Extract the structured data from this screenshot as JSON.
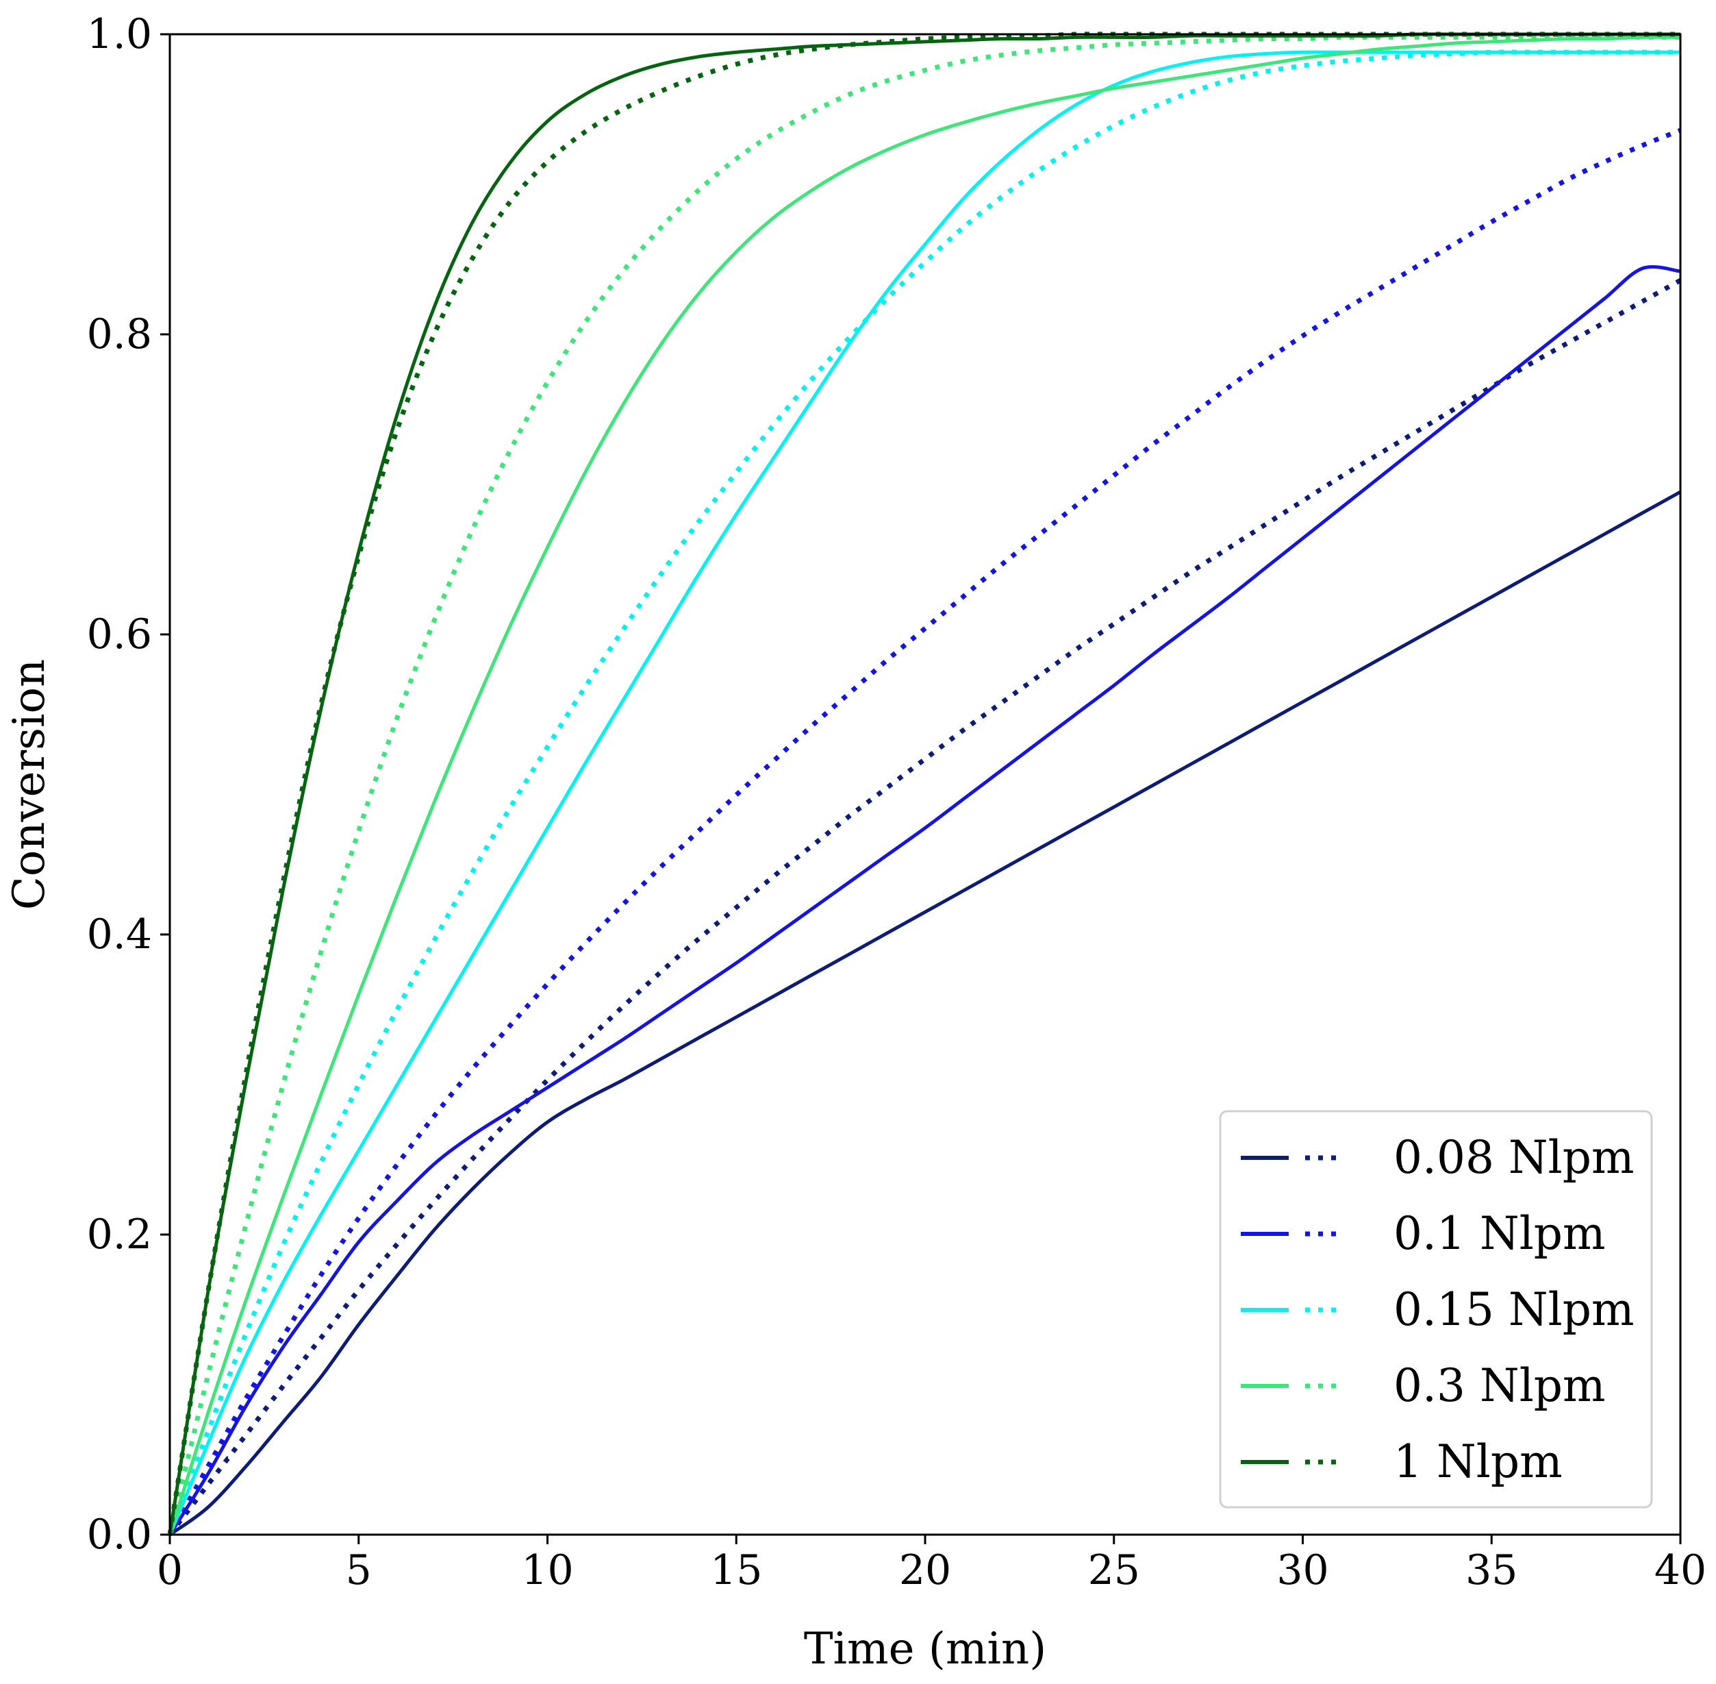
{
  "chart_data": {
    "type": "line",
    "title": "",
    "xlabel": "Time (min)",
    "ylabel": "Conversion",
    "xlim": [
      0,
      40
    ],
    "ylim": [
      0.0,
      1.0
    ],
    "xticks": [
      0,
      5,
      10,
      15,
      20,
      25,
      30,
      35,
      40
    ],
    "xtick_labels": [
      "0",
      "5",
      "10",
      "15",
      "20",
      "25",
      "30",
      "35",
      "40"
    ],
    "yticks": [
      0.0,
      0.2,
      0.4,
      0.6,
      0.8,
      1.0
    ],
    "ytick_labels": [
      "0.0",
      "0.2",
      "0.4",
      "0.6",
      "0.8",
      "1.0"
    ],
    "grid": false,
    "legend_position": "bottom-right",
    "x": [
      0,
      1,
      2,
      3,
      4,
      5,
      6,
      7,
      8,
      9,
      10,
      11,
      12,
      13,
      14,
      15,
      16,
      17,
      18,
      19,
      20,
      21,
      22,
      23,
      24,
      25,
      26,
      27,
      28,
      29,
      30,
      31,
      32,
      33,
      34,
      35,
      36,
      37,
      38,
      39,
      40
    ],
    "series": [
      {
        "name": "0.08 Nlpm",
        "label": "0.08 Nlpm",
        "color": "#0d1b7a",
        "solid": [
          0.0,
          0.018,
          0.045,
          0.075,
          0.105,
          0.14,
          0.172,
          0.203,
          0.23,
          0.254,
          0.275,
          0.29,
          0.303,
          0.317,
          0.331,
          0.345,
          0.359,
          0.373,
          0.387,
          0.401,
          0.415,
          0.429,
          0.443,
          0.457,
          0.471,
          0.485,
          0.499,
          0.513,
          0.527,
          0.541,
          0.555,
          0.569,
          0.583,
          0.597,
          0.611,
          0.625,
          0.639,
          0.653,
          0.667,
          0.681,
          0.695
        ],
        "dotted": [
          0.0,
          0.033,
          0.066,
          0.099,
          0.131,
          0.163,
          0.193,
          0.222,
          0.25,
          0.277,
          0.303,
          0.328,
          0.352,
          0.375,
          0.397,
          0.418,
          0.439,
          0.459,
          0.479,
          0.498,
          0.517,
          0.536,
          0.554,
          0.572,
          0.59,
          0.607,
          0.624,
          0.641,
          0.657,
          0.673,
          0.689,
          0.705,
          0.72,
          0.735,
          0.75,
          0.765,
          0.78,
          0.794,
          0.808,
          0.822,
          0.836
        ]
      },
      {
        "name": "0.1 Nlpm",
        "label": "0.1 Nlpm",
        "color": "#1414e6",
        "solid": [
          0.0,
          0.04,
          0.085,
          0.125,
          0.16,
          0.195,
          0.222,
          0.247,
          0.266,
          0.282,
          0.298,
          0.314,
          0.33,
          0.347,
          0.364,
          0.381,
          0.399,
          0.417,
          0.435,
          0.453,
          0.471,
          0.49,
          0.509,
          0.528,
          0.547,
          0.566,
          0.586,
          0.605,
          0.624,
          0.644,
          0.664,
          0.684,
          0.704,
          0.724,
          0.744,
          0.764,
          0.784,
          0.804,
          0.824,
          0.844,
          0.842
        ],
        "dotted": [
          0.0,
          0.045,
          0.09,
          0.132,
          0.173,
          0.211,
          0.246,
          0.279,
          0.31,
          0.339,
          0.367,
          0.394,
          0.42,
          0.445,
          0.469,
          0.493,
          0.516,
          0.539,
          0.561,
          0.583,
          0.604,
          0.625,
          0.646,
          0.666,
          0.686,
          0.706,
          0.726,
          0.745,
          0.764,
          0.782,
          0.799,
          0.815,
          0.83,
          0.845,
          0.86,
          0.875,
          0.889,
          0.903,
          0.915,
          0.926,
          0.936
        ]
      },
      {
        "name": "0.15 Nlpm",
        "label": "0.15 Nlpm",
        "color": "#00f2f2",
        "solid": [
          0.0,
          0.06,
          0.118,
          0.168,
          0.213,
          0.256,
          0.299,
          0.342,
          0.385,
          0.428,
          0.471,
          0.514,
          0.556,
          0.598,
          0.64,
          0.68,
          0.718,
          0.756,
          0.794,
          0.829,
          0.86,
          0.89,
          0.915,
          0.936,
          0.953,
          0.966,
          0.975,
          0.981,
          0.985,
          0.987,
          0.988,
          0.988,
          0.988,
          0.988,
          0.988,
          0.988,
          0.988,
          0.988,
          0.988,
          0.988,
          0.988
        ],
        "dotted": [
          0.0,
          0.068,
          0.133,
          0.193,
          0.248,
          0.3,
          0.349,
          0.396,
          0.441,
          0.484,
          0.525,
          0.565,
          0.603,
          0.64,
          0.675,
          0.708,
          0.74,
          0.77,
          0.798,
          0.824,
          0.848,
          0.871,
          0.891,
          0.909,
          0.925,
          0.939,
          0.951,
          0.961,
          0.969,
          0.975,
          0.979,
          0.982,
          0.984,
          0.986,
          0.987,
          0.988,
          0.988,
          0.988,
          0.988,
          0.988,
          0.988
        ]
      },
      {
        "name": "0.3 Nlpm",
        "label": "0.3 Nlpm",
        "color": "#3ee67a",
        "solid": [
          0.0,
          0.08,
          0.155,
          0.225,
          0.293,
          0.36,
          0.425,
          0.488,
          0.548,
          0.605,
          0.658,
          0.708,
          0.753,
          0.793,
          0.827,
          0.855,
          0.878,
          0.896,
          0.911,
          0.923,
          0.933,
          0.941,
          0.948,
          0.954,
          0.959,
          0.964,
          0.968,
          0.972,
          0.976,
          0.98,
          0.984,
          0.987,
          0.99,
          0.992,
          0.994,
          0.995,
          0.996,
          0.997,
          0.997,
          0.998,
          0.998
        ],
        "dotted": [
          0.0,
          0.105,
          0.205,
          0.3,
          0.388,
          0.469,
          0.543,
          0.609,
          0.669,
          0.722,
          0.768,
          0.808,
          0.842,
          0.871,
          0.896,
          0.917,
          0.934,
          0.948,
          0.96,
          0.969,
          0.976,
          0.982,
          0.986,
          0.989,
          0.991,
          0.993,
          0.994,
          0.995,
          0.996,
          0.997,
          0.997,
          0.998,
          0.998,
          0.998,
          0.998,
          0.998,
          0.998,
          0.998,
          0.998,
          0.998,
          0.998
        ]
      },
      {
        "name": "1 Nlpm",
        "label": "1 Nlpm",
        "color": "#05640f",
        "solid": [
          0.0,
          0.16,
          0.3,
          0.43,
          0.55,
          0.655,
          0.745,
          0.818,
          0.874,
          0.914,
          0.942,
          0.96,
          0.972,
          0.98,
          0.985,
          0.988,
          0.99,
          0.992,
          0.993,
          0.994,
          0.995,
          0.996,
          0.997,
          0.997,
          0.998,
          0.998,
          0.998,
          0.999,
          0.999,
          0.999,
          0.999,
          0.999,
          0.999,
          1.0,
          1.0,
          1.0,
          1.0,
          1.0,
          1.0,
          1.0,
          1.0
        ],
        "dotted": [
          0.0,
          0.16,
          0.305,
          0.435,
          0.553,
          0.652,
          0.735,
          0.8,
          0.85,
          0.888,
          0.915,
          0.935,
          0.95,
          0.962,
          0.972,
          0.98,
          0.986,
          0.99,
          0.993,
          0.995,
          0.997,
          0.998,
          0.999,
          0.999,
          1.0,
          1.0,
          1.0,
          1.0,
          1.0,
          1.0,
          1.0,
          1.0,
          1.0,
          1.0,
          1.0,
          1.0,
          1.0,
          1.0,
          1.0,
          1.0,
          1.0
        ]
      }
    ]
  }
}
